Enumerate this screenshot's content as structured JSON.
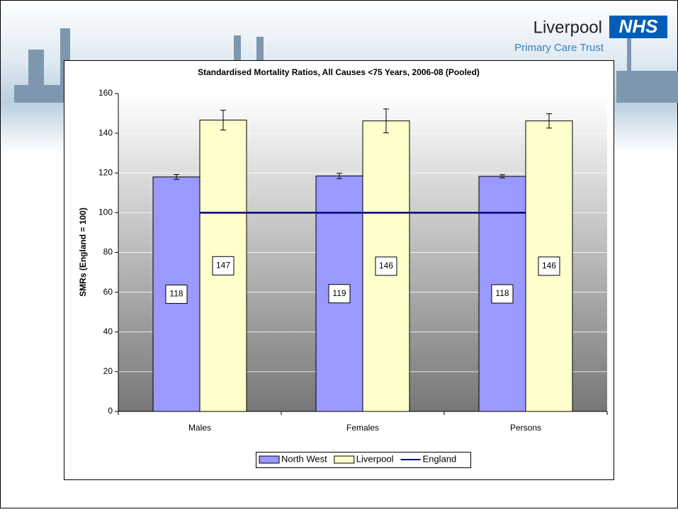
{
  "header": {
    "name": "Liverpool",
    "badge": "NHS",
    "subtitle": "Primary Care Trust"
  },
  "chart_data": {
    "type": "bar",
    "title": "Standardised Mortality Ratios, All Causes <75 Years, 2006-08 (Pooled)",
    "y_label": "SMRs (England = 100)",
    "categories": [
      "Males",
      "Females",
      "Persons"
    ],
    "series": [
      {
        "name": "North West",
        "color": "#9999ff",
        "values": [
          118,
          118.5,
          118.3
        ],
        "value_labels": [
          "118",
          "119",
          "118"
        ],
        "errors": [
          1.2,
          1.3,
          0.8
        ]
      },
      {
        "name": "Liverpool",
        "color": "#ffffcc",
        "values": [
          146.6,
          146.2,
          146.2
        ],
        "value_labels": [
          "147",
          "146",
          "146"
        ],
        "errors": [
          5,
          6,
          3.6
        ]
      },
      {
        "name": "England",
        "type": "line",
        "color": "#000080",
        "values": [
          100,
          100,
          100
        ]
      }
    ],
    "ylim": [
      0,
      160
    ],
    "yticks": [
      0,
      20,
      40,
      60,
      80,
      100,
      120,
      140,
      160
    ],
    "grid": true,
    "legend": "bottom"
  }
}
